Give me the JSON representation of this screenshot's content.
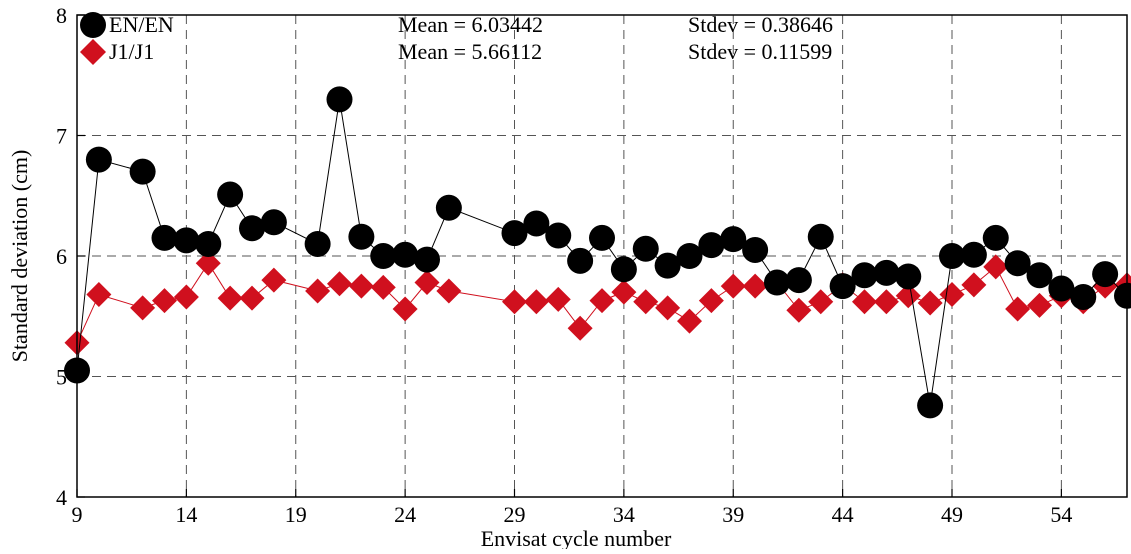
{
  "chart_data": {
    "type": "line",
    "title": "",
    "xlabel": "Envisat cycle number",
    "ylabel": "Standard deviation (cm)",
    "xlim": [
      9,
      57
    ],
    "ylim": [
      4,
      8
    ],
    "xticks": [
      9,
      14,
      19,
      24,
      29,
      34,
      39,
      44,
      49,
      54
    ],
    "yticks": [
      4,
      5,
      6,
      7,
      8
    ],
    "x_tick_labels": [
      "9",
      "14",
      "19",
      "24",
      "29",
      "34",
      "39",
      "44",
      "49",
      "54"
    ],
    "y_tick_labels": [
      "4",
      "5",
      "6",
      "7",
      "8"
    ],
    "grid": true,
    "legend_position": "top-left",
    "series": [
      {
        "name": "EN/EN",
        "color": "#000000",
        "marker": "circle",
        "mean_label": "Mean = 6.03442",
        "stdev_label": "Stdev = 0.38646",
        "x": [
          9,
          10,
          12,
          13,
          14,
          15,
          16,
          17,
          18,
          20,
          21,
          22,
          23,
          24,
          25,
          26,
          29,
          30,
          31,
          32,
          33,
          34,
          35,
          36,
          37,
          38,
          39,
          40,
          41,
          42,
          43,
          44,
          45,
          46,
          47,
          48,
          49,
          50,
          51,
          52,
          53,
          54,
          55,
          56,
          57
        ],
        "y": [
          5.05,
          6.8,
          6.7,
          6.15,
          6.13,
          6.1,
          6.51,
          6.23,
          6.28,
          6.1,
          7.3,
          6.16,
          6.0,
          6.01,
          5.97,
          6.4,
          6.19,
          6.27,
          6.17,
          5.96,
          6.15,
          5.89,
          6.06,
          5.92,
          6.0,
          6.09,
          6.14,
          6.05,
          5.78,
          5.8,
          6.16,
          5.75,
          5.84,
          5.86,
          5.83,
          4.76,
          6.0,
          6.01,
          6.15,
          5.94,
          5.84,
          5.73,
          5.66,
          5.85,
          5.67
        ]
      },
      {
        "name": "J1/J1",
        "color": "#d0101e",
        "marker": "diamond",
        "mean_label": "Mean = 5.66112",
        "stdev_label": "Stdev = 0.11599",
        "x": [
          9,
          10,
          12,
          13,
          14,
          15,
          16,
          17,
          18,
          20,
          21,
          22,
          23,
          24,
          25,
          26,
          29,
          30,
          31,
          32,
          33,
          34,
          35,
          36,
          37,
          38,
          39,
          40,
          41,
          42,
          43,
          44,
          45,
          46,
          47,
          48,
          49,
          50,
          51,
          52,
          53,
          54,
          55,
          56,
          57
        ],
        "y": [
          5.28,
          5.68,
          5.57,
          5.63,
          5.66,
          5.94,
          5.65,
          5.65,
          5.8,
          5.71,
          5.77,
          5.75,
          5.74,
          5.56,
          5.78,
          5.71,
          5.62,
          5.62,
          5.64,
          5.4,
          5.63,
          5.7,
          5.62,
          5.57,
          5.46,
          5.63,
          5.75,
          5.75,
          5.78,
          5.55,
          5.62,
          5.76,
          5.62,
          5.62,
          5.67,
          5.61,
          5.68,
          5.76,
          5.91,
          5.56,
          5.59,
          5.67,
          5.62,
          5.75,
          5.76
        ]
      }
    ]
  }
}
